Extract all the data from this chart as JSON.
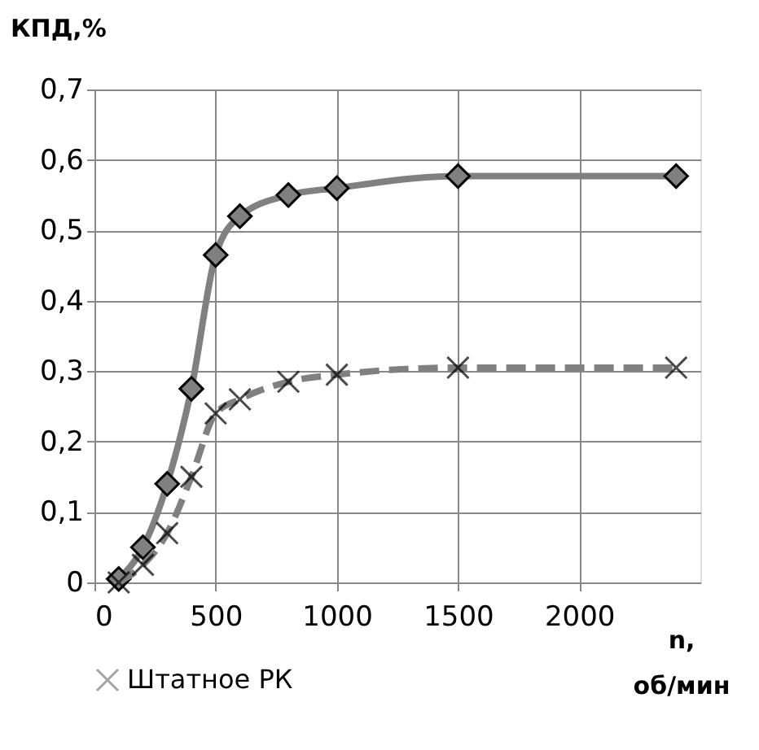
{
  "chart_data": {
    "type": "line",
    "ylabel": "КПД,%",
    "xlabel": "n,\nоб/мин",
    "x": [
      100,
      200,
      300,
      400,
      500,
      600,
      800,
      1000,
      1500,
      2400
    ],
    "series": [
      {
        "color": "#808080",
        "values": [
          0.005,
          0.05,
          0.14,
          0.275,
          0.465,
          0.52,
          0.55,
          0.56,
          0.577,
          0.577
        ],
        "marker": "diamond",
        "line_style": "solid"
      },
      {
        "name": "Штатное РК",
        "color": "#808080",
        "values": [
          0.0,
          0.025,
          0.07,
          0.15,
          0.24,
          0.26,
          0.285,
          0.295,
          0.305,
          0.305
        ],
        "marker": "cross",
        "line_style": "dashed"
      }
    ],
    "xlim": [
      0,
      2500
    ],
    "xticks": [
      0,
      500,
      1000,
      1500,
      2000
    ],
    "ylim": [
      0,
      0.7
    ],
    "yticks": [
      0,
      {
        "value": 0.1,
        "label": "0,1"
      },
      {
        "value": 0.2,
        "label": "0,2"
      },
      {
        "value": 0.3,
        "label": "0,3"
      },
      {
        "value": 0.4,
        "label": "0,4"
      },
      {
        "value": 0.5,
        "label": "0,5"
      },
      {
        "value": 0.6,
        "label": "0,6"
      },
      {
        "value": 0.7,
        "label": "0,7"
      }
    ],
    "grid": true,
    "legend": "bottom"
  }
}
